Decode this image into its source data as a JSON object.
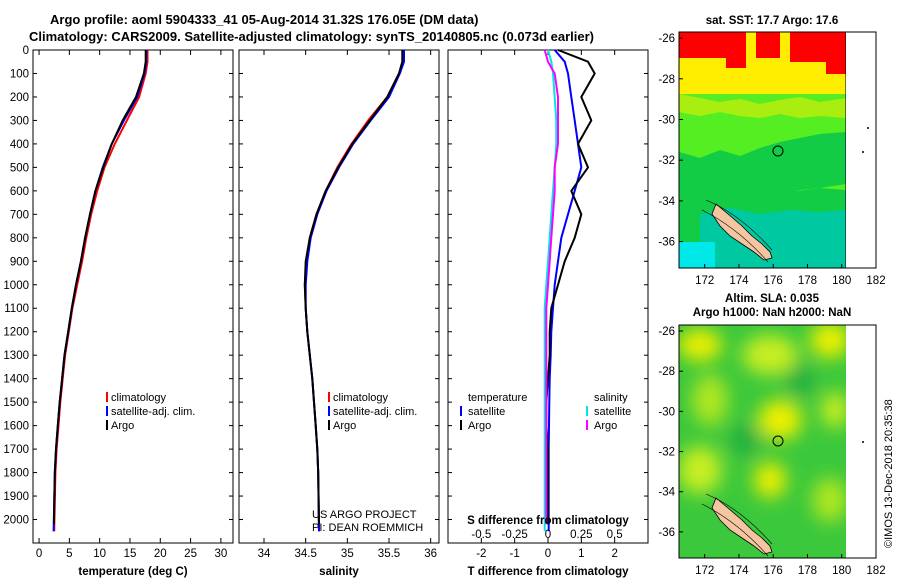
{
  "header": {
    "title_line1": "Argo profile: aoml 5904333_41 05-Aug-2014 31.32S 176.05E (DM data)",
    "title_line2": "Climatology: CARS2009. Satellite-adjusted climatology: synTS_20140805.nc (0.073d earlier)"
  },
  "map_top": {
    "title": "sat. SST: 17.7 Argo: 17.6"
  },
  "map_bottom": {
    "title_line1": "Altim. SLA: 0.035",
    "title_line2": "Argo h1000: NaN h2000: NaN"
  },
  "watermark": "©IMOS 13-Dec-2018 20:35:38",
  "credit": {
    "line1": "US ARGO PROJECT",
    "line2": "PI: DEAN ROEMMICH"
  },
  "colors": {
    "climatology": "#ff0000",
    "satellite": "#0000ff",
    "argo": "#000000",
    "sal_satellite": "#00e5e5",
    "sal_argo": "#ff00ff"
  },
  "chart_data": [
    {
      "type": "line",
      "id": "temperature",
      "xlabel": "temperature (deg C)",
      "ylabel": "",
      "xlim": [
        -1,
        32
      ],
      "ylim": [
        2100,
        0
      ],
      "xticks": [
        0,
        5,
        10,
        15,
        20,
        25,
        30
      ],
      "yticks": [
        0,
        100,
        200,
        300,
        400,
        500,
        600,
        700,
        800,
        900,
        1000,
        1100,
        1200,
        1300,
        1400,
        1500,
        1600,
        1700,
        1800,
        1900,
        2000
      ],
      "legend": [
        "climatology",
        "satellite-adj. clim.",
        "Argo"
      ],
      "series": [
        {
          "name": "climatology",
          "color": "#ff0000",
          "x": [
            17.9,
            17.9,
            17.6,
            16.5,
            14.5,
            12.5,
            10.8,
            9.6,
            8.6,
            7.8,
            7.1,
            6.3,
            5.5,
            4.9,
            4.3,
            3.9,
            3.5,
            3.2,
            2.9,
            2.7,
            2.5
          ],
          "y": [
            0,
            50,
            100,
            200,
            300,
            400,
            500,
            600,
            700,
            800,
            900,
            1000,
            1100,
            1200,
            1300,
            1400,
            1500,
            1600,
            1700,
            1800,
            2050
          ]
        },
        {
          "name": "satellite-adj. clim.",
          "color": "#0000ff",
          "x": [
            17.7,
            17.7,
            17.4,
            16.2,
            14.0,
            12.0,
            10.5,
            9.3,
            8.4,
            7.6,
            6.9,
            6.1,
            5.4,
            4.8,
            4.2,
            3.8,
            3.4,
            3.1,
            2.8,
            2.6,
            2.4
          ],
          "y": [
            0,
            50,
            100,
            200,
            300,
            400,
            500,
            600,
            700,
            800,
            900,
            1000,
            1100,
            1200,
            1300,
            1400,
            1500,
            1600,
            1700,
            1800,
            2050
          ]
        },
        {
          "name": "Argo",
          "color": "#000000",
          "x": [
            17.6,
            17.6,
            17.3,
            16.0,
            13.8,
            12.0,
            10.6,
            9.3,
            8.4,
            7.6,
            6.9,
            6.1,
            5.4,
            4.8,
            4.2,
            3.8,
            3.4,
            3.1,
            2.8,
            2.6,
            2.45
          ],
          "y": [
            0,
            50,
            100,
            200,
            300,
            400,
            500,
            600,
            700,
            800,
            900,
            1000,
            1100,
            1200,
            1300,
            1400,
            1500,
            1600,
            1700,
            1800,
            2020
          ]
        }
      ]
    },
    {
      "type": "line",
      "id": "salinity",
      "xlabel": "salinity",
      "ylabel": "",
      "xlim": [
        33.7,
        36.1
      ],
      "ylim": [
        2100,
        0
      ],
      "xticks": [
        34,
        34.5,
        35,
        35.5,
        36
      ],
      "legend": [
        "climatology",
        "satellite-adj. clim.",
        "Argo"
      ],
      "series": [
        {
          "name": "climatology",
          "color": "#ff0000",
          "x": [
            35.67,
            35.67,
            35.62,
            35.48,
            35.25,
            35.05,
            34.88,
            34.74,
            34.63,
            34.55,
            34.51,
            34.49,
            34.5,
            34.52,
            34.55,
            34.58,
            34.6,
            34.62,
            34.64,
            34.65,
            34.66
          ],
          "y": [
            0,
            50,
            100,
            200,
            300,
            400,
            500,
            600,
            700,
            800,
            900,
            1000,
            1100,
            1200,
            1300,
            1400,
            1500,
            1600,
            1700,
            1800,
            2050
          ]
        },
        {
          "name": "satellite-adj. clim.",
          "color": "#0000ff",
          "x": [
            35.68,
            35.68,
            35.63,
            35.5,
            35.28,
            35.07,
            34.9,
            34.75,
            34.64,
            34.56,
            34.52,
            34.5,
            34.5,
            34.52,
            34.55,
            34.58,
            34.6,
            34.62,
            34.64,
            34.65,
            34.66
          ],
          "y": [
            0,
            50,
            100,
            200,
            300,
            400,
            500,
            600,
            700,
            800,
            900,
            1000,
            1100,
            1200,
            1300,
            1400,
            1500,
            1600,
            1700,
            1800,
            2050
          ]
        },
        {
          "name": "Argo",
          "color": "#000000",
          "x": [
            35.66,
            35.66,
            35.62,
            35.48,
            35.27,
            35.06,
            34.89,
            34.74,
            34.63,
            34.55,
            34.5,
            34.49,
            34.5,
            34.52,
            34.55,
            34.58,
            34.6,
            34.62,
            34.64,
            34.65,
            34.66
          ],
          "y": [
            0,
            50,
            100,
            200,
            300,
            400,
            500,
            600,
            700,
            800,
            900,
            1000,
            1100,
            1200,
            1300,
            1400,
            1500,
            1600,
            1700,
            1800,
            2020
          ]
        }
      ]
    },
    {
      "type": "line",
      "id": "difference",
      "xlabel": "T difference from climatology",
      "top_label": "S difference from climatology",
      "xlim": [
        -3,
        3
      ],
      "xticks": [
        -2,
        -1,
        0,
        1,
        2
      ],
      "top_ticks": [
        "-0.5",
        "-0.25",
        "0",
        "0.25",
        "0.5"
      ],
      "ylim": [
        2100,
        0
      ],
      "legend_left_title": "temperature",
      "legend_right_title": "salinity",
      "legend": [
        "satellite",
        "Argo",
        "satellite",
        "Argo"
      ],
      "series": [
        {
          "name": "satellite",
          "color": "#0000ff",
          "x": [
            0.2,
            0.5,
            0.6,
            0.7,
            0.8,
            0.9,
            1.0,
            0.8,
            0.6,
            0.4,
            0.3,
            0.2,
            0.15,
            0.1,
            0.08,
            0.05,
            0.04,
            0.03,
            0.02,
            0.02,
            0.02
          ],
          "y": [
            0,
            50,
            100,
            200,
            300,
            400,
            500,
            600,
            700,
            800,
            900,
            1000,
            1100,
            1200,
            1300,
            1400,
            1500,
            1600,
            1700,
            1800,
            2050
          ]
        },
        {
          "name": "Argo",
          "color": "#000000",
          "x": [
            0.3,
            1.2,
            1.4,
            1.0,
            1.3,
            0.9,
            1.2,
            0.7,
            1.0,
            0.8,
            0.5,
            0.3,
            0.1,
            0.05,
            0.05,
            0.0,
            -0.05,
            -0.05,
            0.0,
            0.0,
            0.0
          ],
          "y": [
            0,
            50,
            100,
            200,
            300,
            400,
            500,
            600,
            700,
            800,
            900,
            1000,
            1100,
            1200,
            1300,
            1400,
            1500,
            1600,
            1700,
            1800,
            2020
          ]
        },
        {
          "name": "satellite",
          "color": "#00e5e5",
          "x": [
            0.0,
            0.1,
            0.15,
            0.2,
            0.25,
            0.25,
            0.2,
            0.15,
            0.1,
            0.05,
            0.0,
            -0.05,
            -0.1,
            -0.1,
            -0.1,
            -0.1,
            -0.1,
            -0.1,
            -0.1,
            -0.1,
            -0.1
          ],
          "y": [
            0,
            50,
            100,
            200,
            300,
            400,
            500,
            600,
            700,
            800,
            900,
            1000,
            1100,
            1200,
            1300,
            1400,
            1500,
            1600,
            1700,
            1800,
            2050
          ]
        },
        {
          "name": "Argo",
          "color": "#ff00ff",
          "x": [
            -0.1,
            0.0,
            0.2,
            0.3,
            0.3,
            0.3,
            0.2,
            0.2,
            0.15,
            0.1,
            0.05,
            0.0,
            -0.05,
            -0.05,
            -0.05,
            -0.05,
            -0.05,
            -0.05,
            -0.05,
            -0.05,
            -0.05
          ],
          "y": [
            0,
            50,
            100,
            200,
            300,
            400,
            500,
            600,
            700,
            800,
            900,
            1000,
            1100,
            1200,
            1300,
            1400,
            1500,
            1600,
            1700,
            1800,
            2020
          ]
        }
      ]
    },
    {
      "type": "heatmap",
      "id": "sst_map",
      "title": "sat. SST: 17.7 Argo: 17.6",
      "xlim": [
        170.5,
        182
      ],
      "ylim": [
        -37.3,
        -25.7
      ],
      "xticks": [
        172,
        174,
        176,
        178,
        180,
        182
      ],
      "yticks": [
        -26,
        -28,
        -30,
        -32,
        -34,
        -36
      ],
      "profile_location": {
        "lon": 176.05,
        "lat": -31.32
      }
    },
    {
      "type": "heatmap",
      "id": "sla_map",
      "title": "Altim. SLA: 0.035",
      "xlim": [
        170.5,
        182
      ],
      "ylim": [
        -37.3,
        -25.7
      ],
      "xticks": [
        172,
        174,
        176,
        178,
        180,
        182
      ],
      "yticks": [
        -26,
        -28,
        -30,
        -32,
        -34,
        -36
      ],
      "profile_location": {
        "lon": 176.05,
        "lat": -31.32
      }
    }
  ]
}
